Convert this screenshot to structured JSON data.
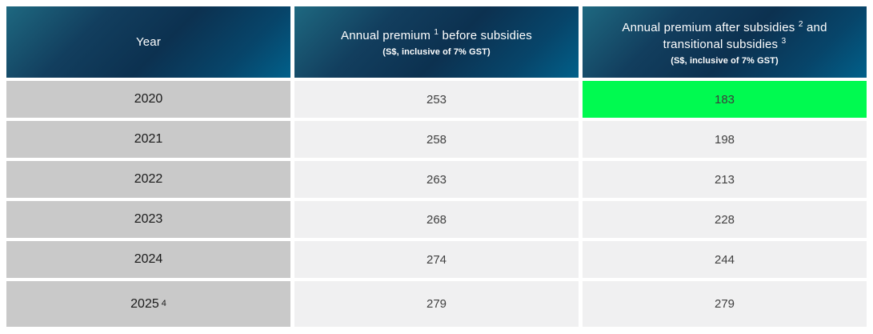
{
  "colors": {
    "header_gradient_start": "#1e6880",
    "header_gradient_mid": "#0c3150",
    "header_gradient_end": "#01608a",
    "header_text": "#ffffff",
    "year_cell_bg": "#c9c9c9",
    "value_cell_bg": "#f0f0f1",
    "highlight_green": "#00fa50"
  },
  "table": {
    "header": {
      "col1": {
        "title": "Year"
      },
      "col2": {
        "title_pre": "Annual premium ",
        "title_sup": "1",
        "title_post": " before subsidies",
        "subtitle": "(S$, inclusive of 7% GST)"
      },
      "col3": {
        "line1_pre": "Annual premium after subsidies ",
        "line1_sup": "2",
        "line1_post": " and",
        "line2_pre": "transitional subsidies ",
        "line2_sup": "3",
        "subtitle": "(S$, inclusive of 7% GST)"
      }
    },
    "rows": [
      {
        "year": "2020",
        "year_sup": "",
        "before": "253",
        "after": "183",
        "highlighted": true
      },
      {
        "year": "2021",
        "year_sup": "",
        "before": "258",
        "after": "198",
        "highlighted": false
      },
      {
        "year": "2022",
        "year_sup": "",
        "before": "263",
        "after": "213",
        "highlighted": false
      },
      {
        "year": "2023",
        "year_sup": "",
        "before": "268",
        "after": "228",
        "highlighted": false
      },
      {
        "year": "2024",
        "year_sup": "",
        "before": "274",
        "after": "244",
        "highlighted": false
      },
      {
        "year": "2025",
        "year_sup": "4",
        "before": "279",
        "after": "279",
        "highlighted": false
      }
    ]
  },
  "chart_data": {
    "type": "table",
    "title": "Annual premiums before and after subsidies",
    "categories": [
      "2020",
      "2021",
      "2022",
      "2023",
      "2024",
      "2025"
    ],
    "series": [
      {
        "name": "Annual premium before subsidies (S$, inclusive of 7% GST)",
        "values": [
          253,
          258,
          263,
          268,
          274,
          279
        ]
      },
      {
        "name": "Annual premium after subsidies and transitional subsidies (S$, inclusive of 7% GST)",
        "values": [
          183,
          198,
          213,
          228,
          244,
          279
        ]
      }
    ]
  }
}
